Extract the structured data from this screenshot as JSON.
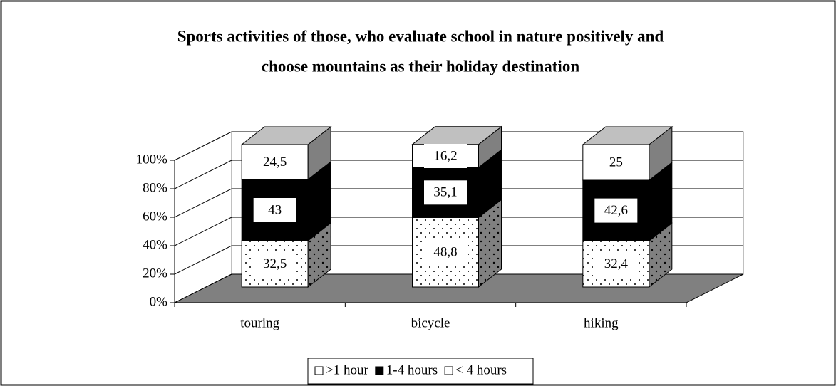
{
  "chart_data": {
    "type": "bar3d_stacked",
    "title": "Sports activities of those, who evaluate school in nature positively and choose mountains as their holiday destination",
    "categories": [
      "touring",
      "bicycle",
      "hiking"
    ],
    "series": [
      {
        "name": "< 4 hours",
        "color": "#ffffff",
        "pattern": "dots",
        "values": [
          32.5,
          48.8,
          32.4
        ],
        "value_labels": [
          "32,5",
          "48,8",
          "32,4"
        ]
      },
      {
        "name": "1-4 hours",
        "color": "#000000",
        "values": [
          43,
          35.1,
          42.6
        ],
        "value_labels": [
          "43",
          "35,1",
          "42,6"
        ]
      },
      {
        "name": ">1 hour",
        "color": "#ffffff",
        "values": [
          24.5,
          16.2,
          25
        ],
        "value_labels": [
          "24,5",
          "16,2",
          "25"
        ]
      }
    ],
    "ylim": [
      0,
      100
    ],
    "yticks": [
      {
        "value": 0,
        "label": "0%"
      },
      {
        "value": 20,
        "label": "20%"
      },
      {
        "value": 40,
        "label": "40%"
      },
      {
        "value": 60,
        "label": "60%"
      },
      {
        "value": 80,
        "label": "80%"
      },
      {
        "value": 100,
        "label": "100%"
      }
    ],
    "grid": true,
    "legend": "bottom"
  }
}
